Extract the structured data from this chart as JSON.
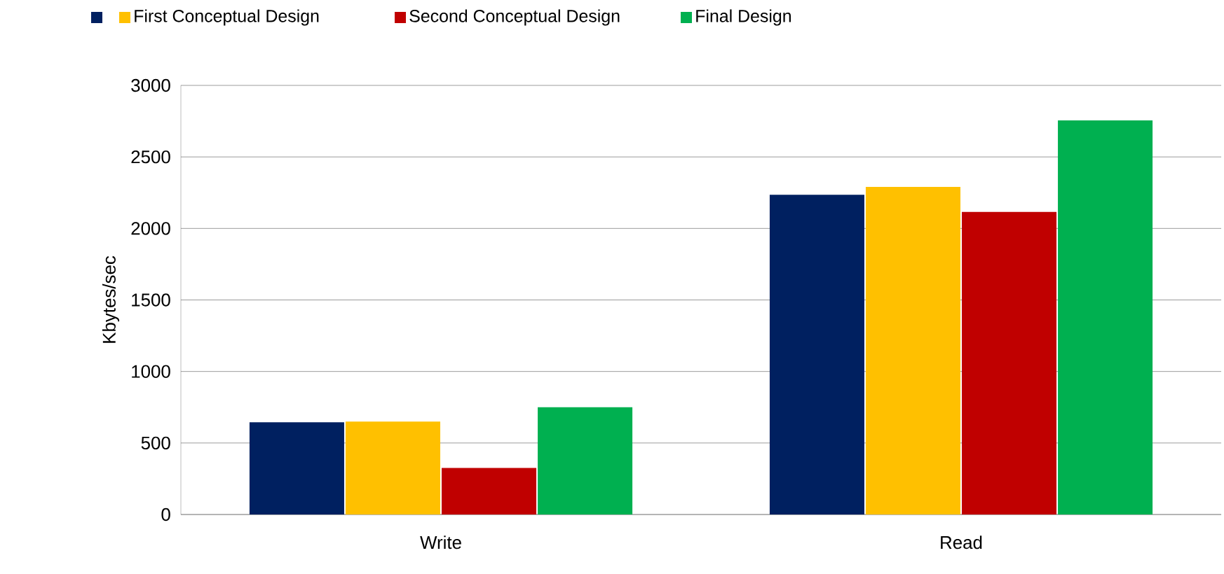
{
  "chart_data": {
    "type": "bar",
    "ylabel": "Kbytes/sec",
    "categories": [
      "Write",
      "Read"
    ],
    "series": [
      {
        "color": "#002060",
        "values": [
          645,
          2235
        ]
      },
      {
        "name": "First Conceptual Design",
        "color": "#ffc000",
        "values": [
          650,
          2290
        ]
      },
      {
        "name": "Second Conceptual Design",
        "color": "#c00000",
        "values": [
          325,
          2115
        ]
      },
      {
        "name": "Final Design",
        "color": "#00b050",
        "values": [
          750,
          2755
        ]
      }
    ],
    "ylim": [
      0,
      3000
    ],
    "yticks": [
      0,
      500,
      1000,
      1500,
      2000,
      2500,
      3000
    ],
    "grid": "y",
    "legend": "top"
  }
}
